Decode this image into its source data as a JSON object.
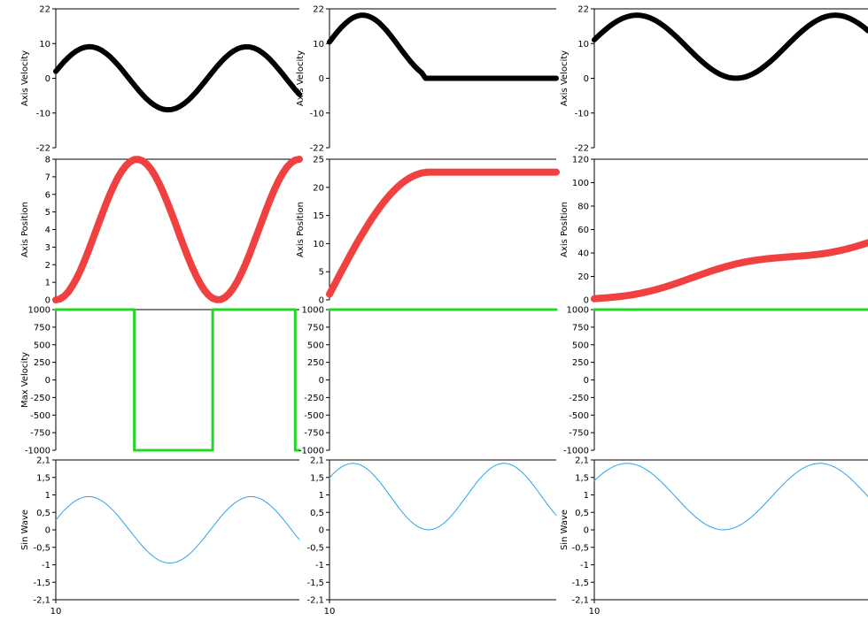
{
  "colors": {
    "velocity": "#000000",
    "position": "#f04040",
    "max_velocity": "#22d822",
    "sin_wave": "#2aa6e6",
    "frame": "#000000"
  },
  "chart_data": [
    {
      "type": "line",
      "ylabel": "Axis Velocity",
      "ylim": [
        -22,
        22
      ],
      "yticks": [
        "22",
        "10",
        "0",
        "-10",
        "-22"
      ],
      "series": [
        {
          "values": []
        }
      ],
      "color_key": "velocity"
    },
    {
      "type": "line",
      "ylabel": "Axis Velocity",
      "ylim": [
        -22,
        22
      ],
      "yticks": [
        "22",
        "10",
        "0",
        "-10",
        "-22"
      ],
      "series": [
        {
          "values": []
        }
      ],
      "color_key": "velocity"
    },
    {
      "type": "line",
      "ylabel": "Axis Velocity",
      "ylim": [
        -22,
        22
      ],
      "yticks": [
        "22",
        "10",
        "0",
        "-10",
        "-22"
      ],
      "series": [
        {
          "values": []
        }
      ],
      "color_key": "velocity"
    },
    {
      "type": "line",
      "ylabel": "Axis Position",
      "ylim": [
        0,
        8
      ],
      "yticks": [
        "8",
        "7",
        "6",
        "5",
        "4",
        "3",
        "2",
        "1",
        "0"
      ],
      "series": [
        {
          "values": []
        }
      ],
      "color_key": "position"
    },
    {
      "type": "line",
      "ylabel": "Axis Position",
      "ylim": [
        0,
        25
      ],
      "yticks": [
        "25",
        "20",
        "15",
        "10",
        "5",
        "0"
      ],
      "series": [
        {
          "values": []
        }
      ],
      "color_key": "position"
    },
    {
      "type": "line",
      "ylabel": "Axis Position",
      "ylim": [
        0,
        120
      ],
      "yticks": [
        "120",
        "100",
        "80",
        "60",
        "40",
        "20",
        "0"
      ],
      "series": [
        {
          "values": []
        }
      ],
      "color_key": "position"
    },
    {
      "type": "line",
      "ylabel": "Max Velocity",
      "ylim": [
        -1000,
        1000
      ],
      "yticks": [
        "1000",
        "750",
        "500",
        "250",
        "0",
        "-250",
        "-500",
        "-750",
        "-1000"
      ],
      "series": [
        {
          "values": []
        }
      ],
      "color_key": "max_velocity"
    },
    {
      "type": "line",
      "ylabel": "",
      "ylim": [
        -1000,
        1000
      ],
      "yticks": [
        "1000",
        "750",
        "500",
        "250",
        "0",
        "-250",
        "-500",
        "-750",
        "-1000"
      ],
      "series": [
        {
          "values": []
        }
      ],
      "color_key": "max_velocity"
    },
    {
      "type": "line",
      "ylabel": "",
      "ylim": [
        -1000,
        1000
      ],
      "yticks": [
        "1000",
        "750",
        "500",
        "250",
        "0",
        "-250",
        "-500",
        "-750",
        "-1000"
      ],
      "series": [
        {
          "values": []
        }
      ],
      "color_key": "max_velocity"
    },
    {
      "type": "line",
      "ylabel": "Sin Wave",
      "ylim": [
        -2.1,
        2.1
      ],
      "yticks": [
        "2,1",
        "1,5",
        "1",
        "0,5",
        "0",
        "-0,5",
        "-1",
        "-1,5",
        "-2,1"
      ],
      "xtick": "10",
      "series": [
        {
          "values": []
        }
      ],
      "color_key": "sin_wave"
    },
    {
      "type": "line",
      "ylabel": "",
      "ylim": [
        -2.1,
        2.1
      ],
      "yticks": [
        "2,1",
        "1,5",
        "1",
        "0,5",
        "0",
        "-0,5",
        "-1",
        "-1,5",
        "-2,1"
      ],
      "xtick": "10",
      "series": [
        {
          "values": []
        }
      ],
      "color_key": "sin_wave"
    },
    {
      "type": "line",
      "ylabel": "Sin Wave",
      "ylim": [
        -2.1,
        2.1
      ],
      "yticks": [
        "2,1",
        "1,5",
        "1",
        "0,5",
        "0",
        "-0,5",
        "-1",
        "-1,5",
        "-2,1"
      ],
      "xtick": "10",
      "series": [
        {
          "values": []
        }
      ],
      "color_key": "sin_wave"
    }
  ]
}
